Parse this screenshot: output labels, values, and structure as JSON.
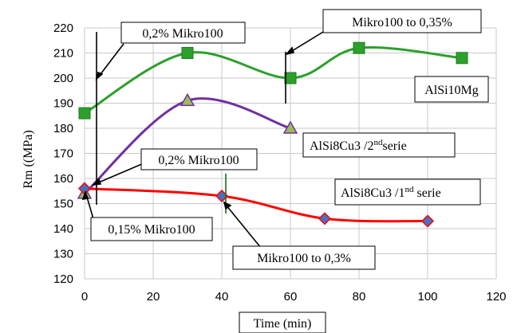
{
  "chart_data": {
    "type": "line",
    "title": "",
    "xlabel": "Time (min)",
    "ylabel": "Rm ((MPa)",
    "xlim": [
      0,
      120
    ],
    "ylim": [
      120,
      220
    ],
    "x_ticks": [
      0,
      20,
      40,
      60,
      80,
      100,
      120
    ],
    "y_ticks": [
      120,
      130,
      140,
      150,
      160,
      170,
      180,
      190,
      200,
      210,
      220
    ],
    "grid": true,
    "series": [
      {
        "name": "AlSi10Mg",
        "color": "#2ca02c",
        "marker": "square",
        "marker_color": "#2ca02c",
        "x": [
          0,
          30,
          60,
          80,
          110
        ],
        "y": [
          186,
          210,
          200,
          212,
          208
        ]
      },
      {
        "name": "AlSi8Cu3 /2nd serie",
        "label_main": "AlSi8Cu3 /2",
        "label_sup": "nd",
        "label_tail": "serie",
        "color": "#7030a0",
        "marker": "triangle",
        "marker_color": "#9bbb59",
        "x": [
          0,
          30,
          60
        ],
        "y": [
          154,
          191,
          180
        ]
      },
      {
        "name": "AlSi8Cu3 /1nd serie",
        "label_main": "AlSi8Cu3 /1",
        "label_sup": "nd",
        "label_tail": " serie",
        "color": "#ff0000",
        "marker": "diamond",
        "marker_color": "#4472c4",
        "x": [
          0,
          40,
          70,
          100
        ],
        "y": [
          156,
          153,
          144,
          143
        ]
      }
    ],
    "annotations": [
      {
        "text": "0,2% Mikro100"
      },
      {
        "text": "Mikro100 to 0,35%"
      },
      {
        "text": "0,2% Mikro100"
      },
      {
        "text": "0,15% Mikro100"
      },
      {
        "text": "Mikro100 to 0,3%"
      }
    ]
  }
}
